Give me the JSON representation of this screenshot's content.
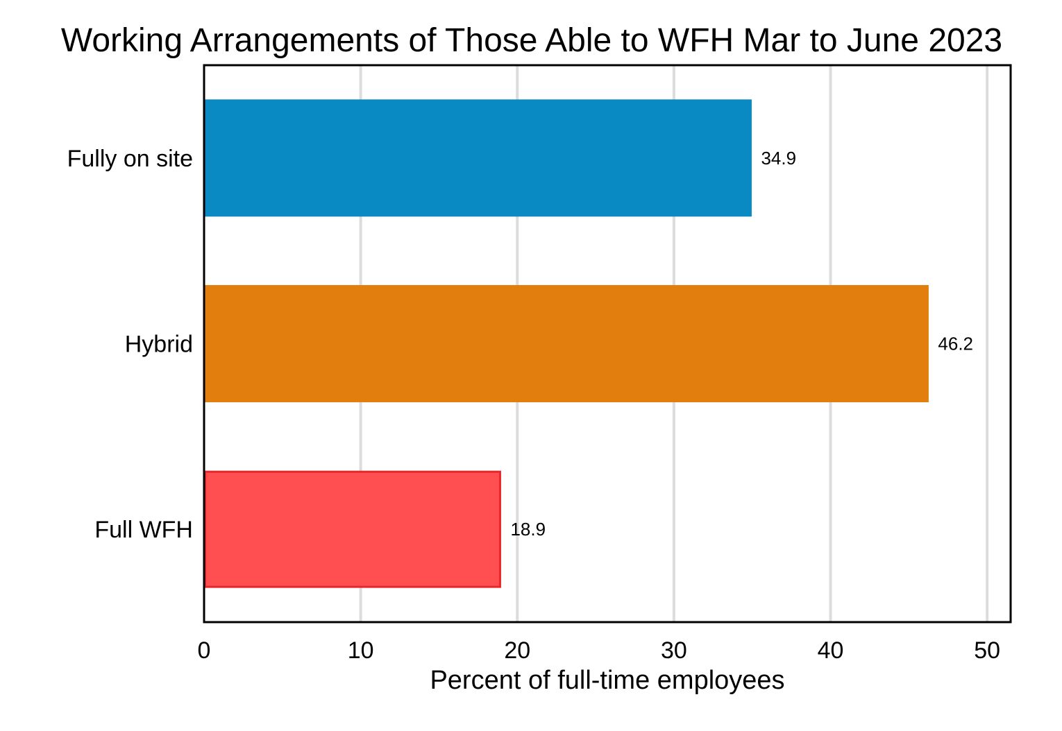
{
  "chart_data": {
    "type": "bar",
    "orientation": "horizontal",
    "title": "Working Arrangements of Those Able to WFH Mar to June 2023",
    "xlabel": "Percent of full-time employees",
    "ylabel": "",
    "xlim": [
      0,
      51.5
    ],
    "xticks": [
      0,
      10,
      20,
      30,
      40,
      50
    ],
    "grid": "vertical",
    "legend": "none",
    "categories": [
      "Fully on site",
      "Hybrid",
      "Full WFH"
    ],
    "values": [
      34.9,
      46.2,
      18.9
    ],
    "value_labels": [
      "34.9",
      "46.2",
      "18.9"
    ],
    "colors": [
      "#0a8ac2",
      "#e17e0d",
      "#ff4f51"
    ],
    "edge_colors": [
      "#0a8ac2",
      "#e17e0d",
      "#e8262b"
    ]
  }
}
